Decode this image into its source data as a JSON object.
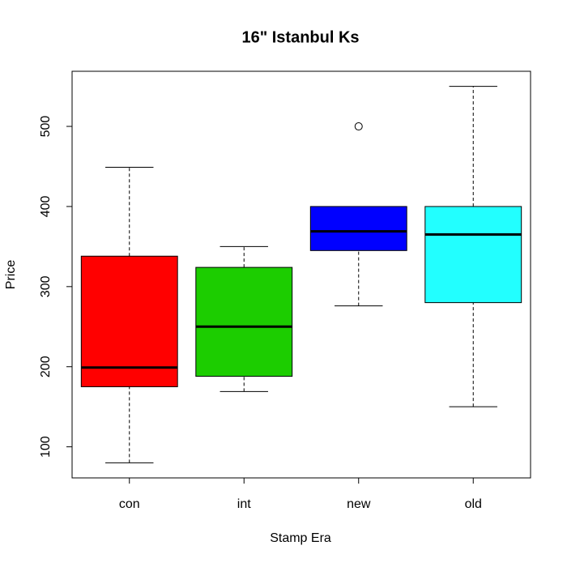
{
  "chart_data": {
    "type": "boxplot",
    "title": "16\" Istanbul Ks",
    "x_label": "Stamp Era",
    "y_label": "Price",
    "categories": [
      "con",
      "int",
      "new",
      "old"
    ],
    "colors": [
      "#ff0000",
      "#1ccd00",
      "#0000ff",
      "#22ffff"
    ],
    "boxes": [
      {
        "min": 80,
        "q1": 175,
        "median": 199,
        "q3": 338,
        "max": 449,
        "outliers": []
      },
      {
        "min": 169,
        "q1": 188,
        "median": 250,
        "q3": 324,
        "max": 350,
        "outliers": []
      },
      {
        "min": 276,
        "q1": 345,
        "median": 369,
        "q3": 400,
        "max": 400,
        "outliers": [
          500
        ]
      },
      {
        "min": 150,
        "q1": 280,
        "median": 365,
        "q3": 400,
        "max": 550,
        "outliers": []
      }
    ],
    "ylim": [
      61.2,
      568.8
    ],
    "yticks": [
      100,
      200,
      300,
      400,
      500
    ]
  }
}
